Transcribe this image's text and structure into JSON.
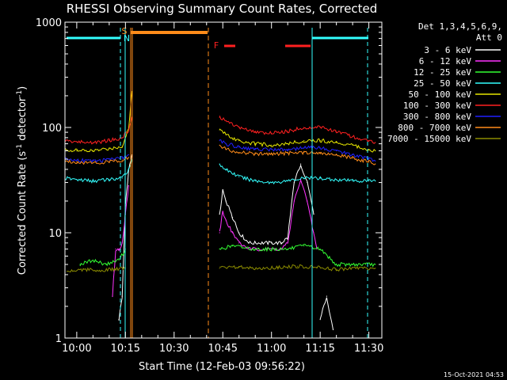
{
  "chart_data": {
    "type": "line",
    "title": "RHESSI Observing Summary Count Rates, Corrected",
    "xlabel": "Start Time (12-Feb-03 09:56:22)",
    "ylabel": "Corrected Count Rate (s⁻¹ detector⁻¹)",
    "ylabel_parts": [
      "Corrected Count Rate (s",
      "-1",
      " detector",
      "-1",
      ")"
    ],
    "yscale": "log",
    "ylim": [
      1,
      1000
    ],
    "xlim": [
      "09:56:22",
      "11:34:00"
    ],
    "x_ticks": [
      "10:00",
      "10:15",
      "10:30",
      "10:45",
      "11:00",
      "11:15",
      "11:30"
    ],
    "y_ticks": [
      "1",
      "10",
      "100",
      "1000"
    ],
    "legend": {
      "placement": "right",
      "header": [
        "Det 1,3,4,5,6,9,",
        "Att 0"
      ],
      "entries": [
        {
          "label": "3 - 6 keV",
          "color": "#ffffff"
        },
        {
          "label": "6 - 12 keV",
          "color": "#ff33ff"
        },
        {
          "label": "12 - 25 keV",
          "color": "#33ff33"
        },
        {
          "label": "25 - 50 keV",
          "color": "#33ffff"
        },
        {
          "label": "50 - 100 keV",
          "color": "#e6e600"
        },
        {
          "label": "100 - 300 keV",
          "color": "#ff2020"
        },
        {
          "label": "300 - 800 keV",
          "color": "#2020ff"
        },
        {
          "label": "800 - 7000 keV",
          "color": "#ff8c1a"
        },
        {
          "label": "7000 - 15000 keV",
          "color": "#8c8c00"
        }
      ]
    },
    "series": [
      {
        "name": "3 - 6 keV",
        "color": "#ffffff",
        "segments": [
          {
            "x": [
              "10:13",
              "10:14",
              "10:15",
              "10:16",
              "10:17"
            ],
            "y": [
              1.5,
              2.5,
              18,
              40,
              55
            ]
          },
          {
            "x": [
              "10:44",
              "10:45",
              "10:46",
              "10:48",
              "10:50",
              "10:53",
              "10:56",
              "11:00",
              "11:03",
              "11:05",
              "11:07",
              "11:09",
              "11:11",
              "11:13"
            ],
            "y": [
              15,
              25,
              20,
              14,
              10,
              8,
              8,
              8,
              8,
              9,
              30,
              45,
              30,
              15
            ]
          },
          {
            "x": [
              "11:15",
              "11:17",
              "11:19"
            ],
            "y": [
              1.5,
              2.5,
              1.2
            ]
          }
        ]
      },
      {
        "name": "6 - 12 keV",
        "color": "#ff33ff",
        "segments": [
          {
            "x": [
              "10:11",
              "10:12",
              "10:13",
              "10:14",
              "10:15",
              "10:16"
            ],
            "y": [
              2.5,
              7,
              7,
              8,
              15,
              28
            ]
          },
          {
            "x": [
              "10:44",
              "10:45",
              "10:46",
              "10:48",
              "10:50",
              "10:53",
              "10:56",
              "11:00",
              "11:03",
              "11:05",
              "11:07",
              "11:09",
              "11:11",
              "11:13",
              "11:14"
            ],
            "y": [
              10,
              16,
              13,
              10,
              8,
              7,
              7,
              7,
              7,
              8,
              20,
              32,
              20,
              10,
              7
            ]
          }
        ]
      },
      {
        "name": "12 - 25 keV",
        "color": "#33ff33",
        "segments": [
          {
            "x": [
              "10:01",
              "10:05",
              "10:09",
              "10:13",
              "10:15"
            ],
            "y": [
              5,
              5.5,
              5,
              5.5,
              7
            ]
          },
          {
            "x": [
              "10:44",
              "10:48",
              "10:55",
              "11:00",
              "11:05",
              "11:10",
              "11:15",
              "11:20",
              "11:25",
              "11:29",
              "11:32"
            ],
            "y": [
              7,
              7.5,
              7,
              7,
              7,
              7.5,
              7,
              5,
              5,
              5,
              5
            ]
          }
        ]
      },
      {
        "name": "25 - 50 keV",
        "color": "#33ffff",
        "segments": [
          {
            "x": [
              "09:56",
              "10:00",
              "10:05",
              "10:10",
              "10:14",
              "10:16",
              "10:17"
            ],
            "y": [
              33,
              32,
              31,
              32,
              33,
              40,
              50
            ]
          },
          {
            "x": [
              "10:44",
              "10:46",
              "10:50",
              "10:55",
              "11:00",
              "11:05",
              "11:10",
              "11:15",
              "11:20",
              "11:25",
              "11:30",
              "11:32"
            ],
            "y": [
              45,
              40,
              34,
              31,
              30,
              31,
              33,
              33,
              32,
              31,
              31,
              31
            ]
          }
        ]
      },
      {
        "name": "50 - 100 keV",
        "color": "#e6e600",
        "segments": [
          {
            "x": [
              "09:56",
              "10:00",
              "10:05",
              "10:10",
              "10:14",
              "10:16",
              "10:17"
            ],
            "y": [
              62,
              60,
              60,
              63,
              66,
              100,
              220
            ]
          },
          {
            "x": [
              "10:44",
              "10:46",
              "10:50",
              "10:55",
              "11:00",
              "11:05",
              "11:10",
              "11:15",
              "11:20",
              "11:25",
              "11:30",
              "11:32"
            ],
            "y": [
              95,
              85,
              75,
              70,
              68,
              70,
              75,
              75,
              72,
              68,
              62,
              60
            ]
          }
        ]
      },
      {
        "name": "100 - 300 keV",
        "color": "#ff2020",
        "segments": [
          {
            "x": [
              "09:56",
              "10:00",
              "10:05",
              "10:10",
              "10:14",
              "10:16",
              "10:17"
            ],
            "y": [
              75,
              73,
              72,
              75,
              80,
              95,
              125
            ]
          },
          {
            "x": [
              "10:44",
              "10:46",
              "10:50",
              "10:55",
              "11:00",
              "11:05",
              "11:10",
              "11:15",
              "11:20",
              "11:25",
              "11:30",
              "11:32"
            ],
            "y": [
              125,
              115,
              100,
              90,
              88,
              92,
              100,
              100,
              92,
              82,
              74,
              72
            ]
          }
        ]
      },
      {
        "name": "300 - 800 keV",
        "color": "#2020ff",
        "segments": [
          {
            "x": [
              "09:56",
              "10:00",
              "10:05",
              "10:10",
              "10:14",
              "10:16"
            ],
            "y": [
              50,
              49,
              48,
              49,
              51,
              55
            ]
          },
          {
            "x": [
              "10:44",
              "10:46",
              "10:50",
              "10:55",
              "11:00",
              "11:05",
              "11:10",
              "11:15",
              "11:20",
              "11:25",
              "11:30",
              "11:32"
            ],
            "y": [
              75,
              70,
              65,
              62,
              62,
              62,
              64,
              64,
              60,
              55,
              50,
              48
            ]
          }
        ]
      },
      {
        "name": "800 - 7000 keV",
        "color": "#ff8c1a",
        "segments": [
          {
            "x": [
              "09:56",
              "10:00",
              "10:05",
              "10:10",
              "10:14",
              "10:16"
            ],
            "y": [
              48,
              47,
              46,
              47,
              49,
              52
            ]
          },
          {
            "x": [
              "10:44",
              "10:46",
              "10:50",
              "10:55",
              "11:00",
              "11:05",
              "11:10",
              "11:15",
              "11:20",
              "11:25",
              "11:30",
              "11:32"
            ],
            "y": [
              68,
              62,
              58,
              56,
              56,
              57,
              58,
              58,
              55,
              51,
              47,
              45
            ]
          }
        ]
      },
      {
        "name": "7000 - 15000 keV",
        "color": "#8c8c00",
        "segments": [
          {
            "x": [
              "09:57",
              "10:02",
              "10:07",
              "10:12",
              "10:15"
            ],
            "y": [
              4.3,
              4.5,
              4.4,
              4.5,
              4.6
            ]
          },
          {
            "x": [
              "10:44",
              "10:50",
              "10:56",
              "11:02",
              "11:08",
              "11:14",
              "11:20",
              "11:26",
              "11:32"
            ],
            "y": [
              4.6,
              4.7,
              4.6,
              4.7,
              4.8,
              4.7,
              4.5,
              4.6,
              4.6
            ]
          }
        ]
      }
    ],
    "flag_markers": [
      {
        "label": "S",
        "color": "#ff8c1a"
      },
      {
        "label": "N",
        "color": "#33ffff"
      },
      {
        "label": "F",
        "color": "#ff2020"
      }
    ],
    "timestamp": "15-Oct-2021 04:53"
  }
}
